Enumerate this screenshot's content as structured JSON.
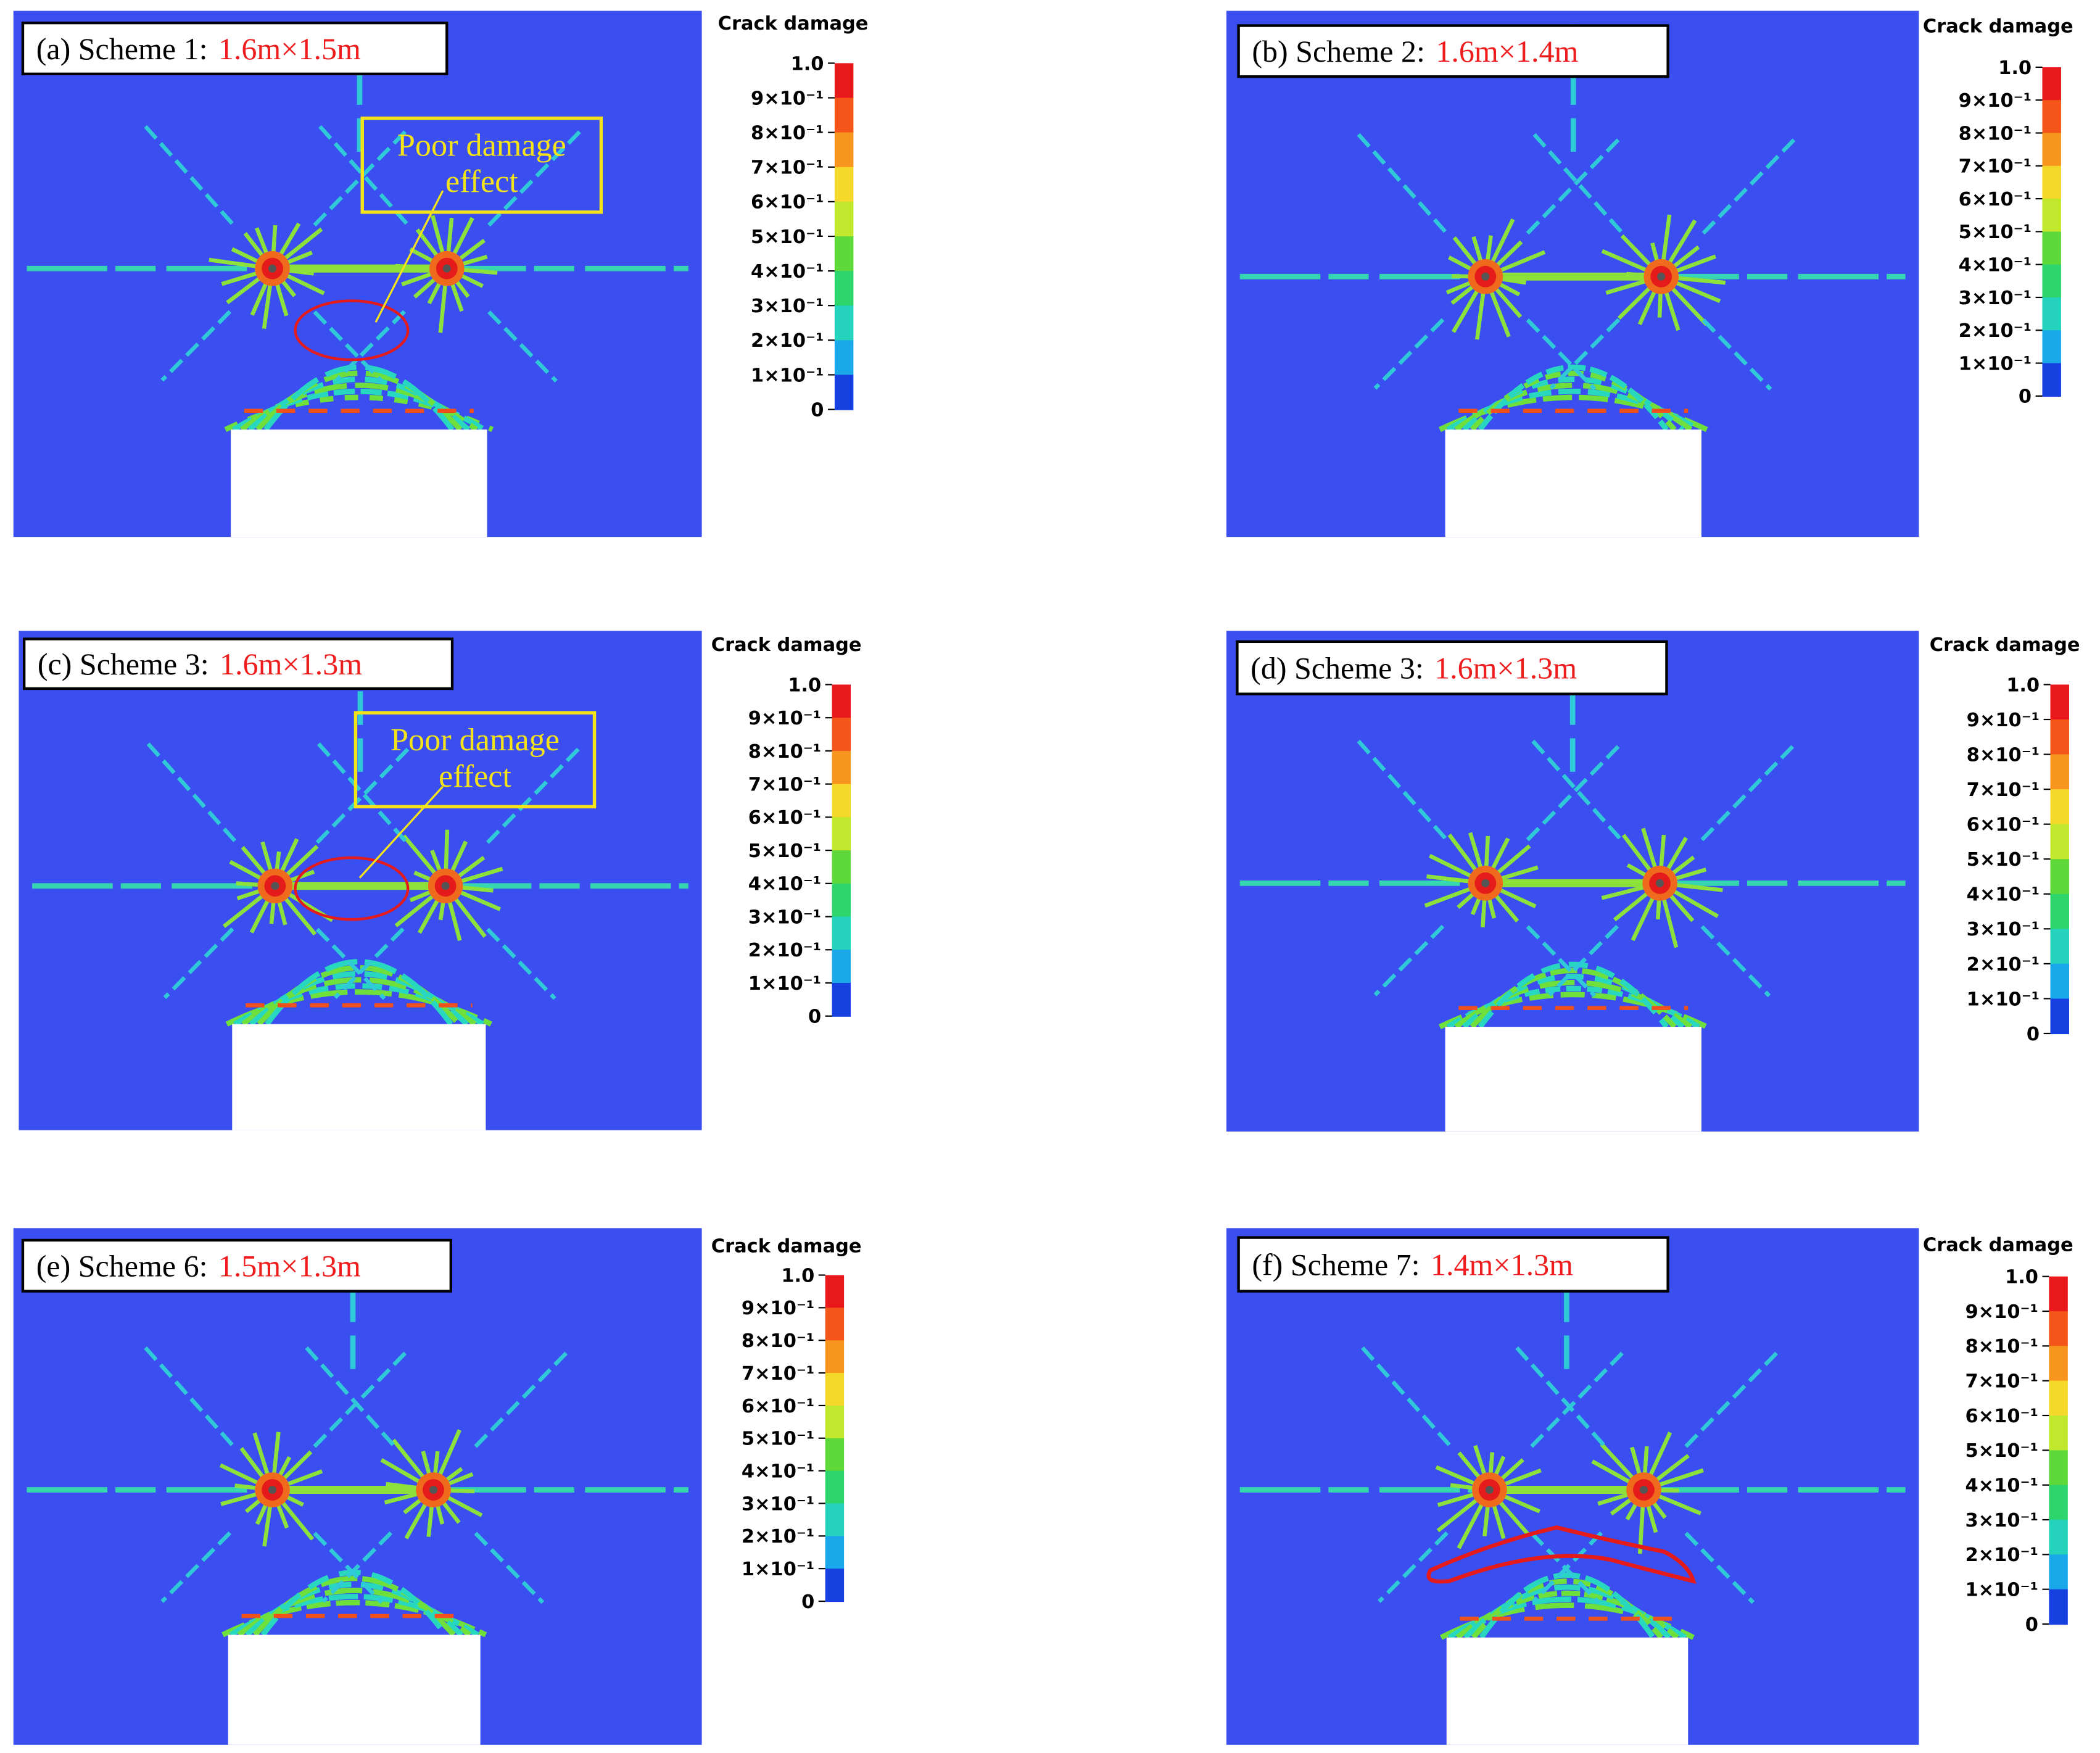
{
  "colorbar": {
    "title": "Crack damage",
    "ticks": [
      "1.0",
      "9×10⁻¹",
      "8×10⁻¹",
      "7×10⁻¹",
      "6×10⁻¹",
      "5×10⁻¹",
      "4×10⁻¹",
      "3×10⁻¹",
      "2×10⁻¹",
      "1×10⁻¹",
      "0"
    ]
  },
  "panels": [
    {
      "label": "(a) Scheme 1:",
      "size": "1.6m×1.5m",
      "annotation": [
        "Poor damage",
        "effect"
      ]
    },
    {
      "label": "(b) Scheme 2:",
      "size": "1.6m×1.4m"
    },
    {
      "label": "(c) Scheme 3:",
      "size": "1.6m×1.3m",
      "annotation": [
        "Poor damage",
        "effect"
      ]
    },
    {
      "label": "(d) Scheme 3:",
      "size": "1.6m×1.3m"
    },
    {
      "label": "(e) Scheme 6:",
      "size": "1.5m×1.3m"
    },
    {
      "label": "(f) Scheme 7:",
      "size": "1.4m×1.3m"
    }
  ]
}
